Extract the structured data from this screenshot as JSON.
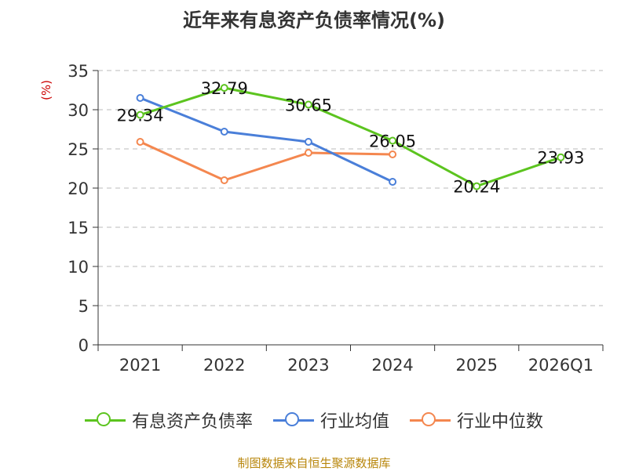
{
  "chart_data": {
    "type": "line",
    "title": "近年来有息资产负债率情况(%)",
    "ylabel": "(%)",
    "xlabel": "",
    "categories": [
      "2021",
      "2022",
      "2023",
      "2024",
      "2025",
      "2026Q1"
    ],
    "ylim": [
      0,
      35
    ],
    "yticks": [
      0,
      5,
      10,
      15,
      20,
      25,
      30,
      35
    ],
    "grid": true,
    "legend_position": "bottom",
    "series": [
      {
        "name": "有息资产负债率",
        "color": "#5cc41f",
        "values": [
          29.34,
          32.79,
          30.65,
          26.05,
          20.24,
          23.93
        ],
        "labels": [
          "29.34",
          "32.79",
          "30.65",
          "26.05",
          "20.24",
          "23.93"
        ]
      },
      {
        "name": "行业均值",
        "color": "#4a7fd9",
        "values": [
          31.5,
          27.2,
          25.9,
          20.8,
          null,
          null
        ]
      },
      {
        "name": "行业中位数",
        "color": "#f4874f",
        "values": [
          25.9,
          21.0,
          24.5,
          24.3,
          null,
          null
        ]
      }
    ]
  },
  "source": "制图数据来自恒生聚源数据库"
}
